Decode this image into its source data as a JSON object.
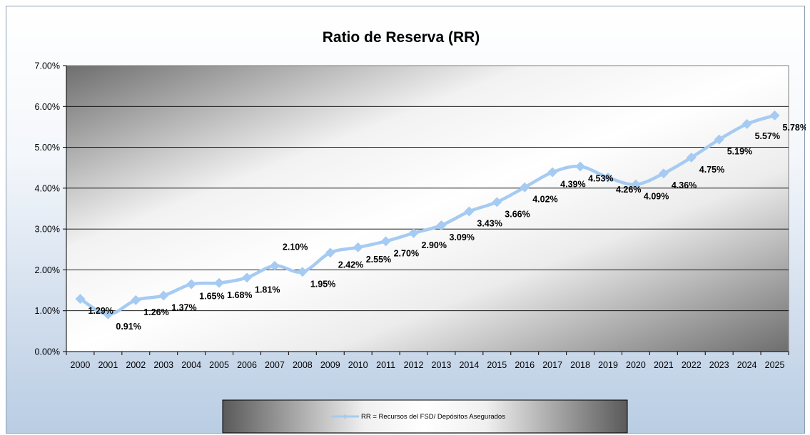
{
  "chart_data": {
    "type": "line",
    "title": "Ratio de Reserva (RR)",
    "xlabel": "",
    "ylabel": "",
    "categories": [
      "2000",
      "2001",
      "2002",
      "2003",
      "2004",
      "2005",
      "2006",
      "2007",
      "2008",
      "2009",
      "2010",
      "2011",
      "2012",
      "2013",
      "2014",
      "2015",
      "2016",
      "2017",
      "2018",
      "2019",
      "2020",
      "2021",
      "2022",
      "2023",
      "2024",
      "2025"
    ],
    "series": [
      {
        "name": "RR = Recursos del FSD/ Depósitos Asegurados",
        "values": [
          1.29,
          0.91,
          1.26,
          1.37,
          1.65,
          1.68,
          1.81,
          2.1,
          1.95,
          2.42,
          2.55,
          2.7,
          2.9,
          3.09,
          3.43,
          3.66,
          4.02,
          4.39,
          4.53,
          4.26,
          4.09,
          4.36,
          4.75,
          5.19,
          5.57,
          5.78
        ],
        "labels": [
          "1.29%",
          "0.91%",
          "1.26%",
          "1.37%",
          "1.65%",
          "1.68%",
          "1.81%",
          "2.10%",
          "1.95%",
          "2.42%",
          "2.55%",
          "2.70%",
          "2.90%",
          "3.09%",
          "3.43%",
          "3.66%",
          "4.02%",
          "4.39%",
          "4.53%",
          "4.26%",
          "4.09%",
          "4.36%",
          "4.75%",
          "5.19%",
          "5.57%",
          "5.78%"
        ],
        "color": "#a6cbf2",
        "marker": "diamond"
      }
    ],
    "ylim": [
      0,
      7
    ],
    "yticks": [
      "0.00%",
      "1.00%",
      "2.00%",
      "3.00%",
      "4.00%",
      "5.00%",
      "6.00%",
      "7.00%"
    ],
    "grid": true,
    "legend": "bottom"
  }
}
